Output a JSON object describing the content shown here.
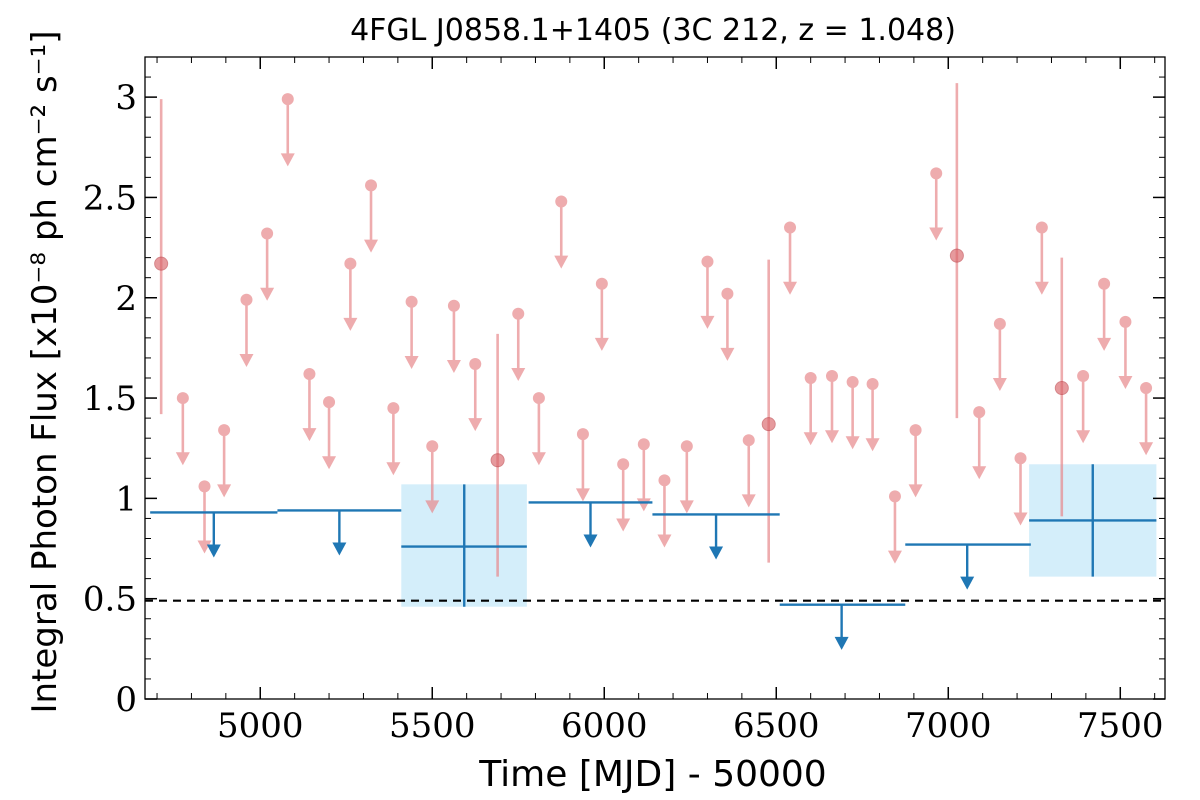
{
  "chart_data": {
    "type": "scatter",
    "title": "4FGL J0858.1+1405 (3C 212, z = 1.048)",
    "xlabel": "Time [MJD] - 50000",
    "ylabel": "Integral Photon Flux [x10⁻⁸ ph cm⁻² s⁻¹]",
    "xlim": [
      4665,
      7630
    ],
    "ylim": [
      0,
      3.2
    ],
    "x_ticks": [
      5000,
      5500,
      6000,
      6500,
      7000,
      7500
    ],
    "x_tick_labels": [
      "5000",
      "5500",
      "6000",
      "6500",
      "7000",
      "7500"
    ],
    "y_ticks": [
      0,
      0.5,
      1,
      1.5,
      2,
      2.5,
      3
    ],
    "y_tick_labels": [
      "0",
      "0.5",
      "1",
      "1.5",
      "2",
      "2.5",
      "3"
    ],
    "grid": false,
    "reference_line": {
      "y": 0.49,
      "style": "dashed",
      "color": "#000000"
    },
    "colors": {
      "fine": "#e8898c",
      "fine_detection": "#d9656a",
      "coarse": "#1f77b4",
      "coarse_band": "#d4eefa"
    },
    "series": [
      {
        "bin": "fine",
        "detections": [
          {
            "x": 4712,
            "y": 2.17,
            "yerr_low": 1.42,
            "yerr_high": 2.99
          },
          {
            "x": 5690,
            "y": 1.19,
            "yerr_low": 0.61,
            "yerr_high": 1.82
          },
          {
            "x": 6478,
            "y": 1.37,
            "yerr_low": 0.68,
            "yerr_high": 2.19
          },
          {
            "x": 7025,
            "y": 2.21,
            "yerr_low": 1.4,
            "yerr_high": 3.07
          },
          {
            "x": 7330,
            "y": 1.55,
            "yerr_low": 0.91,
            "yerr_high": 2.2
          }
        ],
        "upper_limits": [
          {
            "x": 4775,
            "y": 1.5
          },
          {
            "x": 4838,
            "y": 1.06
          },
          {
            "x": 4895,
            "y": 1.34
          },
          {
            "x": 4960,
            "y": 1.99
          },
          {
            "x": 5020,
            "y": 2.32
          },
          {
            "x": 5080,
            "y": 2.99
          },
          {
            "x": 5143,
            "y": 1.62
          },
          {
            "x": 5200,
            "y": 1.48
          },
          {
            "x": 5262,
            "y": 2.17
          },
          {
            "x": 5322,
            "y": 2.56
          },
          {
            "x": 5387,
            "y": 1.45
          },
          {
            "x": 5440,
            "y": 1.98
          },
          {
            "x": 5500,
            "y": 1.26
          },
          {
            "x": 5563,
            "y": 1.96
          },
          {
            "x": 5625,
            "y": 1.67
          },
          {
            "x": 5750,
            "y": 1.92
          },
          {
            "x": 5810,
            "y": 1.5
          },
          {
            "x": 5875,
            "y": 2.48
          },
          {
            "x": 5938,
            "y": 1.32
          },
          {
            "x": 5993,
            "y": 2.07
          },
          {
            "x": 6055,
            "y": 1.17
          },
          {
            "x": 6115,
            "y": 1.27
          },
          {
            "x": 6175,
            "y": 1.09
          },
          {
            "x": 6240,
            "y": 1.26
          },
          {
            "x": 6300,
            "y": 2.18
          },
          {
            "x": 6358,
            "y": 2.02
          },
          {
            "x": 6420,
            "y": 1.29
          },
          {
            "x": 6540,
            "y": 2.35
          },
          {
            "x": 6600,
            "y": 1.6
          },
          {
            "x": 6662,
            "y": 1.61
          },
          {
            "x": 6722,
            "y": 1.58
          },
          {
            "x": 6780,
            "y": 1.57
          },
          {
            "x": 6845,
            "y": 1.01
          },
          {
            "x": 6905,
            "y": 1.34
          },
          {
            "x": 6965,
            "y": 2.62
          },
          {
            "x": 7090,
            "y": 1.43
          },
          {
            "x": 7150,
            "y": 1.87
          },
          {
            "x": 7210,
            "y": 1.2
          },
          {
            "x": 7272,
            "y": 2.35
          },
          {
            "x": 7392,
            "y": 1.61
          },
          {
            "x": 7453,
            "y": 2.07
          },
          {
            "x": 7515,
            "y": 1.88
          },
          {
            "x": 7575,
            "y": 1.55
          }
        ]
      },
      {
        "bin": "coarse",
        "detections": [
          {
            "x": 5593,
            "x_low": 5410,
            "x_high": 5775,
            "y": 0.76,
            "yerr_low": 0.46,
            "yerr_high": 1.07
          },
          {
            "x": 7420,
            "x_low": 7235,
            "x_high": 7605,
            "y": 0.89,
            "yerr_low": 0.61,
            "yerr_high": 1.17
          }
        ],
        "upper_limits": [
          {
            "x": 4865,
            "x_low": 4680,
            "x_high": 5050,
            "y": 0.93
          },
          {
            "x": 5230,
            "x_low": 5050,
            "x_high": 5410,
            "y": 0.94
          },
          {
            "x": 5960,
            "x_low": 5780,
            "x_high": 6140,
            "y": 0.98
          },
          {
            "x": 6325,
            "x_low": 6140,
            "x_high": 6510,
            "y": 0.92
          },
          {
            "x": 6690,
            "x_low": 6510,
            "x_high": 6875,
            "y": 0.47
          },
          {
            "x": 7055,
            "x_low": 6875,
            "x_high": 7240,
            "y": 0.77
          }
        ]
      }
    ]
  }
}
